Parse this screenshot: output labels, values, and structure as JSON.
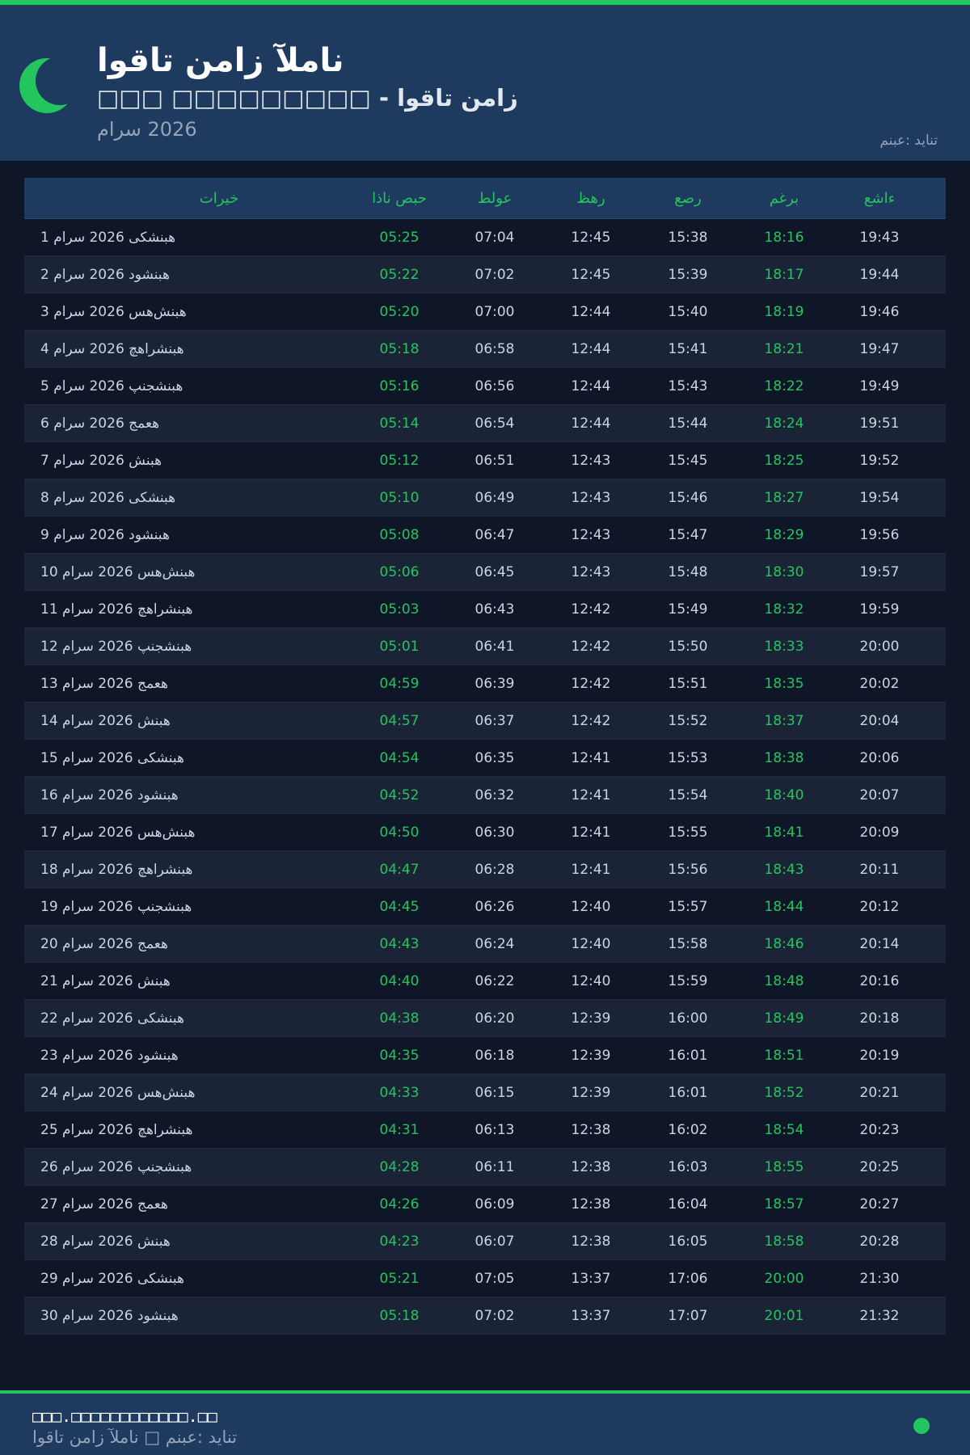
{
  "header": {
    "title": "اوقات نماز آلمان",
    "subtitle": "□□□ □□□□□□□□□ - اوقات نماز",
    "month": "مارس 2026",
    "source": "منبع: دیانت"
  },
  "colors": {
    "accent": "#22c55e",
    "header_bg": "#1e3a5f",
    "body_bg": "#0e1628"
  },
  "table": {
    "columns": [
      "تاریخ",
      "اذان صبح",
      "طلوع",
      "ظهر",
      "عصر",
      "مغرب",
      "عشاء"
    ],
    "rows": [
      [
        "1 مارس 2026 یکشنبه",
        "05:25",
        "07:04",
        "12:45",
        "15:38",
        "18:16",
        "19:43"
      ],
      [
        "2 مارس 2026 دوشنبه",
        "05:22",
        "07:02",
        "12:45",
        "15:39",
        "18:17",
        "19:44"
      ],
      [
        "3 مارس 2026 سه‌شنبه",
        "05:20",
        "07:00",
        "12:44",
        "15:40",
        "18:19",
        "19:46"
      ],
      [
        "4 مارس 2026 چهارشنبه",
        "05:18",
        "06:58",
        "12:44",
        "15:41",
        "18:21",
        "19:47"
      ],
      [
        "5 مارس 2026 پنجشنبه",
        "05:16",
        "06:56",
        "12:44",
        "15:43",
        "18:22",
        "19:49"
      ],
      [
        "6 مارس 2026 جمعه",
        "05:14",
        "06:54",
        "12:44",
        "15:44",
        "18:24",
        "19:51"
      ],
      [
        "7 مارس 2026 شنبه",
        "05:12",
        "06:51",
        "12:43",
        "15:45",
        "18:25",
        "19:52"
      ],
      [
        "8 مارس 2026 یکشنبه",
        "05:10",
        "06:49",
        "12:43",
        "15:46",
        "18:27",
        "19:54"
      ],
      [
        "9 مارس 2026 دوشنبه",
        "05:08",
        "06:47",
        "12:43",
        "15:47",
        "18:29",
        "19:56"
      ],
      [
        "10 مارس 2026 سه‌شنبه",
        "05:06",
        "06:45",
        "12:43",
        "15:48",
        "18:30",
        "19:57"
      ],
      [
        "11 مارس 2026 چهارشنبه",
        "05:03",
        "06:43",
        "12:42",
        "15:49",
        "18:32",
        "19:59"
      ],
      [
        "12 مارس 2026 پنجشنبه",
        "05:01",
        "06:41",
        "12:42",
        "15:50",
        "18:33",
        "20:00"
      ],
      [
        "13 مارس 2026 جمعه",
        "04:59",
        "06:39",
        "12:42",
        "15:51",
        "18:35",
        "20:02"
      ],
      [
        "14 مارس 2026 شنبه",
        "04:57",
        "06:37",
        "12:42",
        "15:52",
        "18:37",
        "20:04"
      ],
      [
        "15 مارس 2026 یکشنبه",
        "04:54",
        "06:35",
        "12:41",
        "15:53",
        "18:38",
        "20:06"
      ],
      [
        "16 مارس 2026 دوشنبه",
        "04:52",
        "06:32",
        "12:41",
        "15:54",
        "18:40",
        "20:07"
      ],
      [
        "17 مارس 2026 سه‌شنبه",
        "04:50",
        "06:30",
        "12:41",
        "15:55",
        "18:41",
        "20:09"
      ],
      [
        "18 مارس 2026 چهارشنبه",
        "04:47",
        "06:28",
        "12:41",
        "15:56",
        "18:43",
        "20:11"
      ],
      [
        "19 مارس 2026 پنجشنبه",
        "04:45",
        "06:26",
        "12:40",
        "15:57",
        "18:44",
        "20:12"
      ],
      [
        "20 مارس 2026 جمعه",
        "04:43",
        "06:24",
        "12:40",
        "15:58",
        "18:46",
        "20:14"
      ],
      [
        "21 مارس 2026 شنبه",
        "04:40",
        "06:22",
        "12:40",
        "15:59",
        "18:48",
        "20:16"
      ],
      [
        "22 مارس 2026 یکشنبه",
        "04:38",
        "06:20",
        "12:39",
        "16:00",
        "18:49",
        "20:18"
      ],
      [
        "23 مارس 2026 دوشنبه",
        "04:35",
        "06:18",
        "12:39",
        "16:01",
        "18:51",
        "20:19"
      ],
      [
        "24 مارس 2026 سه‌شنبه",
        "04:33",
        "06:15",
        "12:39",
        "16:01",
        "18:52",
        "20:21"
      ],
      [
        "25 مارس 2026 چهارشنبه",
        "04:31",
        "06:13",
        "12:38",
        "16:02",
        "18:54",
        "20:23"
      ],
      [
        "26 مارس 2026 پنجشنبه",
        "04:28",
        "06:11",
        "12:38",
        "16:03",
        "18:55",
        "20:25"
      ],
      [
        "27 مارس 2026 جمعه",
        "04:26",
        "06:09",
        "12:38",
        "16:04",
        "18:57",
        "20:27"
      ],
      [
        "28 مارس 2026 شنبه",
        "04:23",
        "06:07",
        "12:38",
        "16:05",
        "18:58",
        "20:28"
      ],
      [
        "29 مارس 2026 یکشنبه",
        "05:21",
        "07:05",
        "13:37",
        "17:06",
        "20:00",
        "21:30"
      ],
      [
        "30 مارس 2026 دوشنبه",
        "05:18",
        "07:02",
        "13:37",
        "17:07",
        "20:01",
        "21:32"
      ]
    ]
  },
  "footer": {
    "url": "□□□.□□□□□□□□□□□□.□□",
    "text": "اوقات نماز آلمان □ منبع: دیانت"
  }
}
